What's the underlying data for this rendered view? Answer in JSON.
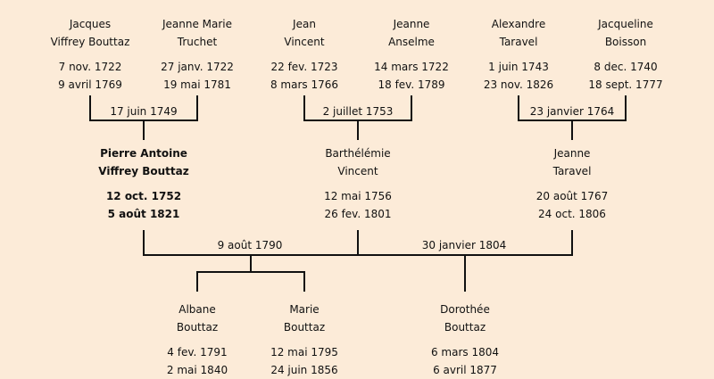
{
  "grandparents": [
    {
      "first": "Jacques",
      "last": "Viffrey Bouttaz",
      "birth": "7 nov. 1722",
      "death": "9 avril 1769"
    },
    {
      "first": "Jeanne Marie",
      "last": "Truchet",
      "birth": "27 janv. 1722",
      "death": "19 mai 1781"
    },
    {
      "first": "Jean",
      "last": "Vincent",
      "birth": "22 fev. 1723",
      "death": "8 mars 1766"
    },
    {
      "first": "Jeanne",
      "last": "Anselme",
      "birth": "14 mars 1722",
      "death": "18 fev. 1789"
    },
    {
      "first": "Alexandre",
      "last": "Taravel",
      "birth": "1 juin 1743",
      "death": "23 nov. 1826"
    },
    {
      "first": "Jacqueline",
      "last": "Boisson",
      "birth": "8 dec. 1740",
      "death": "18 sept. 1777"
    }
  ],
  "grandparent_marriages": [
    "17 juin 1749",
    "2 juillet 1753",
    "23 janvier 1764"
  ],
  "parents": [
    {
      "first": "Pierre Antoine",
      "last": "Viffrey Bouttaz",
      "birth": "12 oct. 1752",
      "death": "5 août 1821"
    },
    {
      "first": "Barthélémie",
      "last": "Vincent",
      "birth": "12 mai 1756",
      "death": "26 fev. 1801"
    },
    {
      "first": "Jeanne",
      "last": "Taravel",
      "birth": "20 août 1767",
      "death": "24 oct. 1806"
    }
  ],
  "parent_marriages": [
    "9 août 1790",
    "30 janvier 1804"
  ],
  "children": [
    {
      "first": "Albane",
      "last": "Bouttaz",
      "birth": "4 fev. 1791",
      "death": "2 mai 1840"
    },
    {
      "first": "Marie",
      "last": "Bouttaz",
      "birth": "12 mai 1795",
      "death": "24 juin 1856"
    },
    {
      "first": "Dorothée",
      "last": "Bouttaz",
      "birth": "6 mars 1804",
      "death": "6 avril 1877"
    }
  ],
  "colors": {
    "background": "#fcebd8",
    "line": "#111111"
  }
}
